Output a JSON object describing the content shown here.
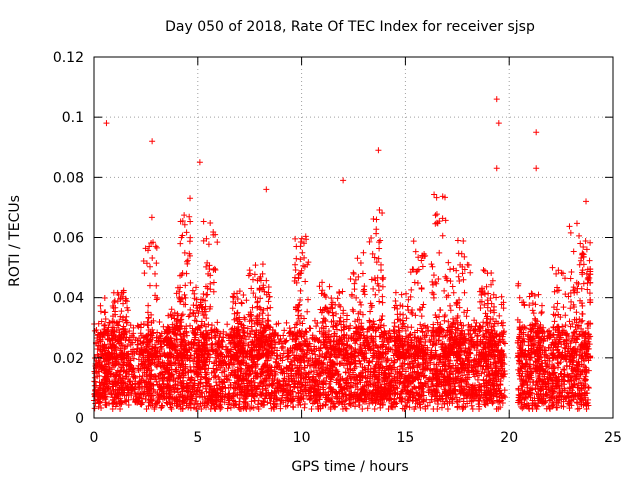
{
  "chart_data": {
    "type": "scatter",
    "title": "Day 050 of 2018, Rate Of TEC Index for receiver sjsp",
    "xlabel": "GPS time / hours",
    "ylabel": "ROTI / TECUs",
    "xlim": [
      0,
      25
    ],
    "ylim": [
      0,
      0.12
    ],
    "xticks": [
      0,
      5,
      10,
      15,
      20,
      25
    ],
    "yticks": [
      0,
      0.02,
      0.04,
      0.06,
      0.08,
      0.1,
      0.12
    ],
    "xtick_labels": [
      "0",
      "5",
      "10",
      "15",
      "20",
      "25"
    ],
    "ytick_labels": [
      "0",
      "0.02",
      "0.04",
      "0.06",
      "0.08",
      "0.1",
      "0.12"
    ],
    "grid": true,
    "marker": "+",
    "color": "#ff0000",
    "series": [
      {
        "name": "ROTI",
        "notable_points": [
          {
            "x": 0.6,
            "y": 0.098
          },
          {
            "x": 2.8,
            "y": 0.092
          },
          {
            "x": 5.1,
            "y": 0.085
          },
          {
            "x": 8.3,
            "y": 0.076
          },
          {
            "x": 12.0,
            "y": 0.079
          },
          {
            "x": 13.7,
            "y": 0.089
          },
          {
            "x": 19.4,
            "y": 0.106
          },
          {
            "x": 19.5,
            "y": 0.098
          },
          {
            "x": 19.4,
            "y": 0.083
          },
          {
            "x": 21.3,
            "y": 0.095
          },
          {
            "x": 21.3,
            "y": 0.083
          },
          {
            "x": 23.7,
            "y": 0.072
          }
        ],
        "baseline_band": [
          0.005,
          0.03
        ],
        "data_gap_hours": [
          19.8,
          20.4
        ]
      }
    ]
  }
}
